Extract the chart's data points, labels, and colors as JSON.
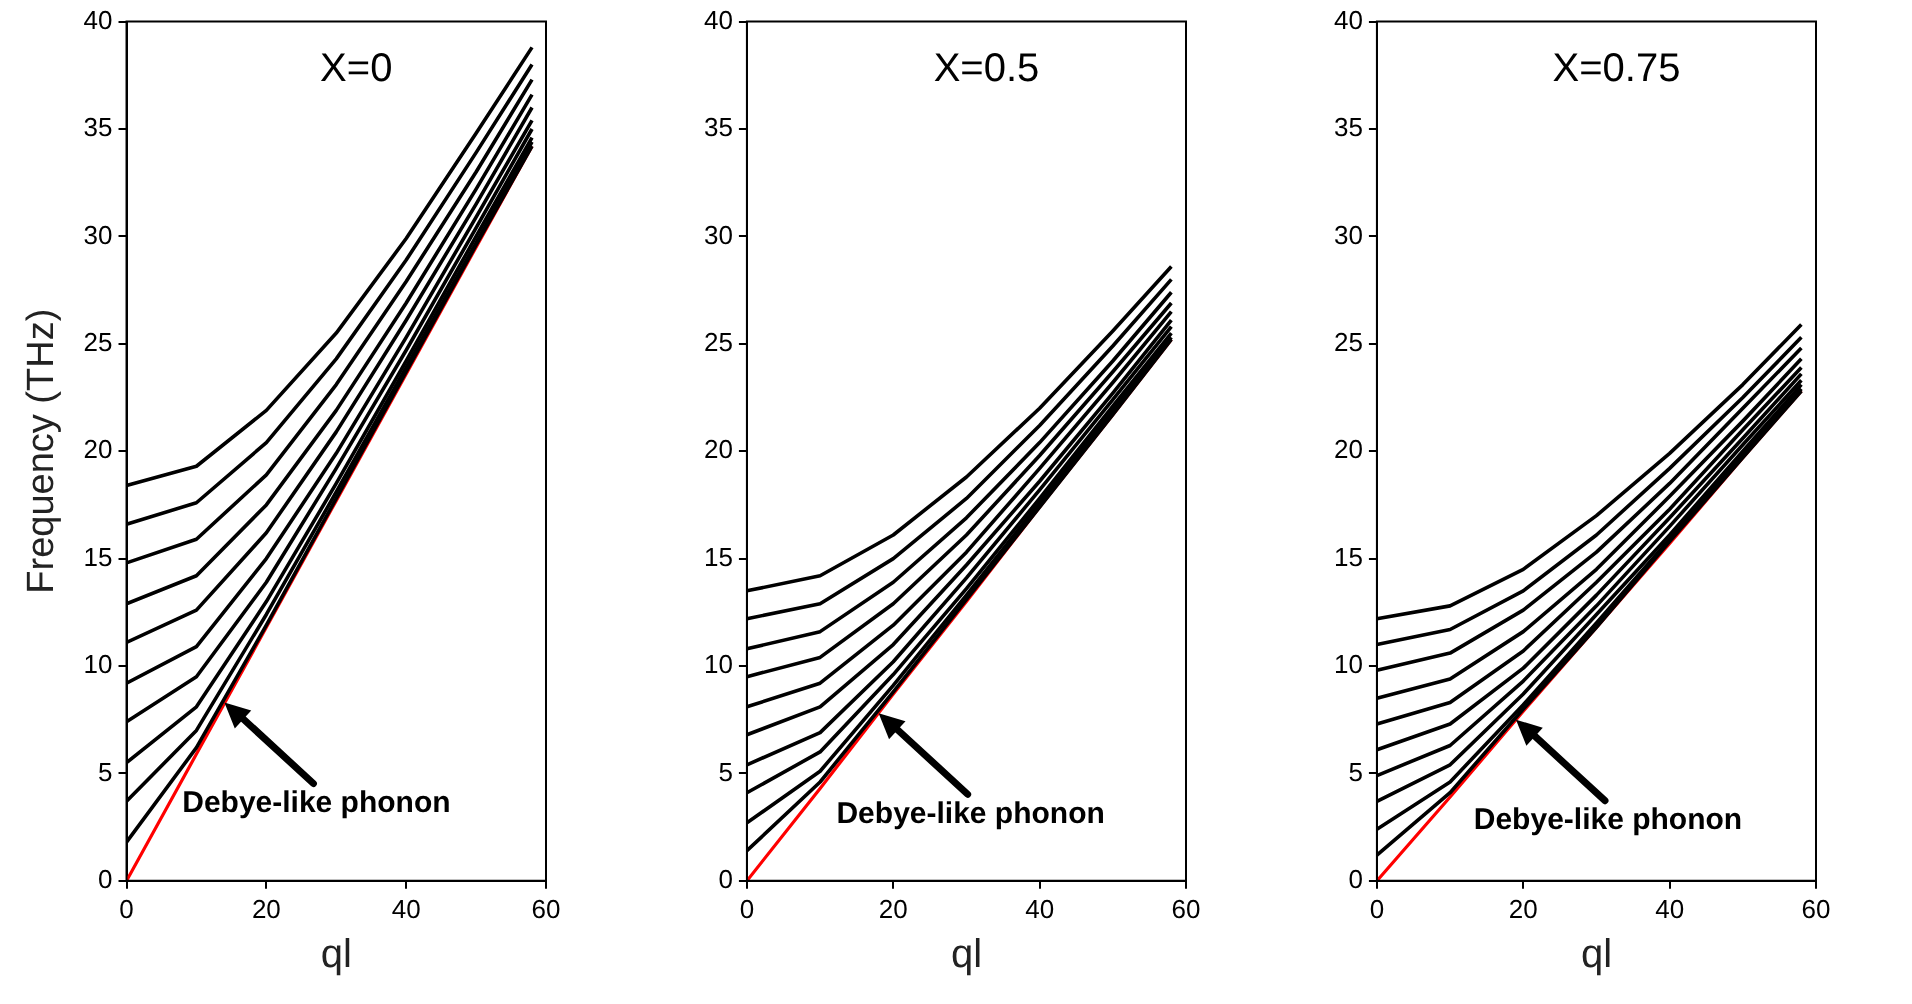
{
  "chart_data": [
    {
      "type": "line",
      "title": "X=0",
      "xlabel": "ql",
      "ylabel": "Frequency (THz)",
      "x": [
        0,
        10,
        20,
        30,
        40,
        50,
        58
      ],
      "xlim": [
        0,
        60
      ],
      "xticks": [
        0,
        20,
        40,
        60
      ],
      "ylim": [
        0,
        40
      ],
      "yticks": [
        0,
        5,
        10,
        15,
        20,
        25,
        30,
        35,
        40
      ],
      "grid": false,
      "legend": false,
      "marker": "none",
      "line_style": "solid",
      "tick_labels": "xy",
      "annotations": [
        {
          "text": "Debye-like phonon",
          "x": 14,
          "y": 8.3
        }
      ],
      "series": [
        {
          "color": "#000000",
          "values": [
            1.8,
            6.2,
            11.9,
            17.8,
            23.7,
            29.6,
            34.2
          ]
        },
        {
          "color": "#000000",
          "values": [
            3.7,
            7.0,
            12.4,
            18.1,
            23.9,
            29.7,
            34.4
          ]
        },
        {
          "color": "#000000",
          "values": [
            5.5,
            8.1,
            13.0,
            18.5,
            24.2,
            30.0,
            34.6
          ]
        },
        {
          "color": "#000000",
          "values": [
            7.4,
            9.5,
            13.9,
            19.2,
            24.7,
            30.4,
            35.0
          ]
        },
        {
          "color": "#000000",
          "values": [
            9.2,
            10.9,
            15.0,
            19.9,
            25.3,
            30.9,
            35.4
          ]
        },
        {
          "color": "#000000",
          "values": [
            11.1,
            12.6,
            16.2,
            20.9,
            26.1,
            31.5,
            36.0
          ]
        },
        {
          "color": "#000000",
          "values": [
            12.9,
            14.2,
            17.5,
            21.9,
            26.9,
            32.2,
            36.6
          ]
        },
        {
          "color": "#000000",
          "values": [
            14.8,
            15.9,
            18.9,
            23.1,
            27.9,
            33.0,
            37.3
          ]
        },
        {
          "color": "#000000",
          "values": [
            16.6,
            17.6,
            20.4,
            24.3,
            28.9,
            33.9,
            38.0
          ]
        },
        {
          "color": "#000000",
          "values": [
            18.4,
            19.3,
            21.9,
            25.5,
            29.9,
            34.8,
            38.8
          ]
        },
        {
          "color": "#ff0000",
          "values": [
            0,
            5.9,
            11.8,
            17.7,
            23.6,
            29.5,
            34.2
          ]
        }
      ]
    },
    {
      "type": "line",
      "title": "X=0.5",
      "xlabel": "ql",
      "x": [
        0,
        10,
        20,
        30,
        40,
        50,
        58
      ],
      "xlim": [
        0,
        60
      ],
      "xticks": [
        0,
        20,
        40,
        60
      ],
      "ylim": [
        0,
        40
      ],
      "yticks": [
        0,
        5,
        10,
        15,
        20,
        25,
        30,
        35,
        40
      ],
      "grid": false,
      "legend": false,
      "marker": "none",
      "line_style": "solid",
      "tick_labels": "xy",
      "annotations": [
        {
          "text": "Debye-like phonon",
          "x": 18,
          "y": 7.8
        }
      ],
      "series": [
        {
          "color": "#000000",
          "values": [
            1.4,
            4.6,
            8.8,
            13.1,
            17.4,
            21.7,
            25.2
          ]
        },
        {
          "color": "#000000",
          "values": [
            2.7,
            5.1,
            9.1,
            13.3,
            17.6,
            21.9,
            25.3
          ]
        },
        {
          "color": "#000000",
          "values": [
            4.1,
            6.0,
            9.6,
            13.6,
            17.8,
            22.1,
            25.5
          ]
        },
        {
          "color": "#000000",
          "values": [
            5.4,
            6.9,
            10.2,
            14.1,
            18.2,
            22.4,
            25.8
          ]
        },
        {
          "color": "#000000",
          "values": [
            6.8,
            8.1,
            11.0,
            14.7,
            18.6,
            22.7,
            26.1
          ]
        },
        {
          "color": "#000000",
          "values": [
            8.1,
            9.2,
            11.9,
            15.3,
            19.2,
            23.2,
            26.5
          ]
        },
        {
          "color": "#000000",
          "values": [
            9.5,
            10.4,
            12.9,
            16.1,
            19.8,
            23.7,
            26.9
          ]
        },
        {
          "color": "#000000",
          "values": [
            10.8,
            11.6,
            13.9,
            16.9,
            20.4,
            24.2,
            27.4
          ]
        },
        {
          "color": "#000000",
          "values": [
            12.2,
            12.9,
            15.0,
            17.8,
            21.2,
            24.9,
            28.0
          ]
        },
        {
          "color": "#000000",
          "values": [
            13.5,
            14.2,
            16.1,
            18.8,
            22.0,
            25.6,
            28.6
          ]
        },
        {
          "color": "#ff0000",
          "values": [
            0,
            4.3,
            8.7,
            13.0,
            17.4,
            21.7,
            25.2
          ]
        }
      ]
    },
    {
      "type": "line",
      "title": "X=0.75",
      "xlabel": "ql",
      "x": [
        0,
        10,
        20,
        30,
        40,
        50,
        58
      ],
      "xlim": [
        0,
        60
      ],
      "xticks": [
        0,
        20,
        40,
        60
      ],
      "ylim": [
        0,
        40
      ],
      "yticks": [
        0,
        5,
        10,
        15,
        20,
        25,
        30,
        35,
        40
      ],
      "grid": false,
      "legend": false,
      "marker": "none",
      "line_style": "solid",
      "tick_labels": "xy",
      "annotations": [
        {
          "text": "Debye-like phonon",
          "x": 19,
          "y": 7.5
        }
      ],
      "series": [
        {
          "color": "#000000",
          "values": [
            1.2,
            4.1,
            8.0,
            11.8,
            15.8,
            19.7,
            22.8
          ]
        },
        {
          "color": "#000000",
          "values": [
            2.4,
            4.6,
            8.2,
            12.0,
            15.9,
            19.8,
            22.9
          ]
        },
        {
          "color": "#000000",
          "values": [
            3.7,
            5.4,
            8.7,
            12.4,
            16.1,
            20.0,
            23.1
          ]
        },
        {
          "color": "#000000",
          "values": [
            4.9,
            6.3,
            9.3,
            12.8,
            16.5,
            20.3,
            23.3
          ]
        },
        {
          "color": "#000000",
          "values": [
            6.1,
            7.3,
            9.9,
            13.3,
            16.9,
            20.6,
            23.6
          ]
        },
        {
          "color": "#000000",
          "values": [
            7.3,
            8.3,
            10.7,
            13.9,
            17.3,
            21.0,
            23.9
          ]
        },
        {
          "color": "#000000",
          "values": [
            8.5,
            9.4,
            11.6,
            14.5,
            17.9,
            21.4,
            24.3
          ]
        },
        {
          "color": "#000000",
          "values": [
            9.8,
            10.6,
            12.6,
            15.3,
            18.5,
            22.0,
            24.8
          ]
        },
        {
          "color": "#000000",
          "values": [
            11.0,
            11.7,
            13.5,
            16.1,
            19.2,
            22.5,
            25.3
          ]
        },
        {
          "color": "#000000",
          "values": [
            12.2,
            12.8,
            14.5,
            17.0,
            19.9,
            23.1,
            25.9
          ]
        },
        {
          "color": "#ff0000",
          "values": [
            0,
            3.9,
            7.9,
            11.8,
            15.7,
            19.7,
            22.8
          ]
        }
      ]
    }
  ]
}
